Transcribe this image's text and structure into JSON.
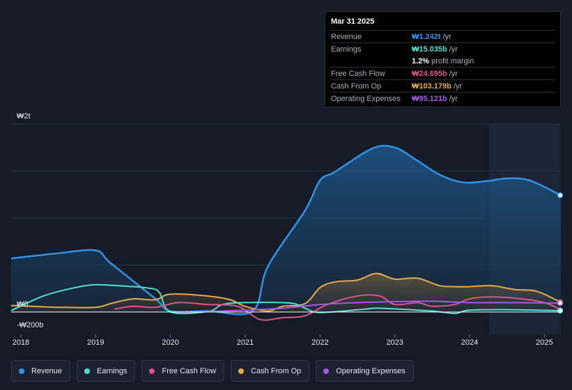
{
  "tooltip": {
    "date": "Mar 31 2025",
    "rows": [
      {
        "label": "Revenue",
        "value": "₩1.242t",
        "unit": "/yr",
        "color": "#2f94e8"
      },
      {
        "label": "Earnings",
        "value": "₩15.035b",
        "unit": "/yr",
        "color": "#4fe0cf"
      },
      {
        "label": "",
        "value": "1.2%",
        "unit": "profit margin",
        "color": "#ffffff"
      },
      {
        "label": "Free Cash Flow",
        "value": "₩24.695b",
        "unit": "/yr",
        "color": "#d9558c"
      },
      {
        "label": "Cash From Op",
        "value": "₩103.179b",
        "unit": "/yr",
        "color": "#e8a94e"
      },
      {
        "label": "Operating Expenses",
        "value": "₩95.121b",
        "unit": "/yr",
        "color": "#a35ae6"
      }
    ]
  },
  "chart_data": {
    "type": "area",
    "title": "",
    "xlabel": "",
    "ylabel": "",
    "y_tick_labels": {
      "top": "₩2t",
      "zero": "₩0",
      "bottom": "-₩200b"
    },
    "ylim": [
      -200,
      2000
    ],
    "xlim": [
      2017.87,
      2025.22
    ],
    "x_ticks": [
      2018,
      2019,
      2020,
      2021,
      2022,
      2023,
      2024,
      2025
    ],
    "x_tick_labels": [
      "2018",
      "2019",
      "2020",
      "2021",
      "2022",
      "2023",
      "2024",
      "2025"
    ],
    "highlight_from": 2024.26,
    "units": "KRW billions",
    "series": [
      {
        "name": "Revenue",
        "color": "#2f94e8",
        "fill": true,
        "points": [
          [
            2017.87,
            570
          ],
          [
            2018.5,
            625
          ],
          [
            2019.0,
            655
          ],
          [
            2019.2,
            520
          ],
          [
            2019.8,
            140
          ],
          [
            2020.0,
            10
          ],
          [
            2020.5,
            10
          ],
          [
            2021.1,
            10
          ],
          [
            2021.3,
            480
          ],
          [
            2021.8,
            1080
          ],
          [
            2022.0,
            1400
          ],
          [
            2022.2,
            1490
          ],
          [
            2022.7,
            1740
          ],
          [
            2023.0,
            1750
          ],
          [
            2023.3,
            1610
          ],
          [
            2023.6,
            1460
          ],
          [
            2023.9,
            1380
          ],
          [
            2024.2,
            1390
          ],
          [
            2024.5,
            1420
          ],
          [
            2024.8,
            1400
          ],
          [
            2025.22,
            1242
          ]
        ]
      },
      {
        "name": "Earnings",
        "color": "#4fe0cf",
        "fill": false,
        "points": [
          [
            2017.87,
            15
          ],
          [
            2018.3,
            170
          ],
          [
            2018.7,
            255
          ],
          [
            2019.0,
            290
          ],
          [
            2019.4,
            275
          ],
          [
            2019.7,
            255
          ],
          [
            2019.85,
            210
          ],
          [
            2020.0,
            0
          ],
          [
            2020.5,
            5
          ],
          [
            2020.7,
            80
          ],
          [
            2021.0,
            100
          ],
          [
            2021.6,
            95
          ],
          [
            2021.8,
            40
          ],
          [
            2022.0,
            -5
          ],
          [
            2022.6,
            30
          ],
          [
            2022.8,
            40
          ],
          [
            2023.5,
            10
          ],
          [
            2023.8,
            -15
          ],
          [
            2024.0,
            20
          ],
          [
            2024.5,
            25
          ],
          [
            2025.22,
            15
          ]
        ]
      },
      {
        "name": "Free Cash Flow",
        "color": "#d9558c",
        "fill": false,
        "points": [
          [
            2019.25,
            30
          ],
          [
            2019.5,
            60
          ],
          [
            2019.8,
            50
          ],
          [
            2020.1,
            100
          ],
          [
            2020.5,
            80
          ],
          [
            2020.9,
            60
          ],
          [
            2021.2,
            -80
          ],
          [
            2021.5,
            -60
          ],
          [
            2021.8,
            -40
          ],
          [
            2022.1,
            80
          ],
          [
            2022.5,
            170
          ],
          [
            2022.8,
            170
          ],
          [
            2023.0,
            80
          ],
          [
            2023.3,
            100
          ],
          [
            2023.5,
            60
          ],
          [
            2023.8,
            80
          ],
          [
            2024.0,
            140
          ],
          [
            2024.3,
            160
          ],
          [
            2024.7,
            140
          ],
          [
            2025.0,
            100
          ],
          [
            2025.22,
            25
          ]
        ]
      },
      {
        "name": "Cash From Op",
        "color": "#e8a94e",
        "fill": true,
        "points": [
          [
            2017.87,
            70
          ],
          [
            2018.5,
            50
          ],
          [
            2019.0,
            50
          ],
          [
            2019.2,
            90
          ],
          [
            2019.5,
            140
          ],
          [
            2019.8,
            130
          ],
          [
            2020.0,
            190
          ],
          [
            2020.5,
            170
          ],
          [
            2020.8,
            130
          ],
          [
            2021.0,
            60
          ],
          [
            2021.3,
            10
          ],
          [
            2021.5,
            60
          ],
          [
            2021.8,
            90
          ],
          [
            2022.0,
            260
          ],
          [
            2022.2,
            320
          ],
          [
            2022.5,
            340
          ],
          [
            2022.75,
            410
          ],
          [
            2023.0,
            350
          ],
          [
            2023.3,
            360
          ],
          [
            2023.6,
            280
          ],
          [
            2023.8,
            270
          ],
          [
            2024.0,
            270
          ],
          [
            2024.3,
            280
          ],
          [
            2024.6,
            240
          ],
          [
            2024.9,
            220
          ],
          [
            2025.22,
            103
          ]
        ]
      },
      {
        "name": "Operating Expenses",
        "color": "#a35ae6",
        "fill": false,
        "points": [
          [
            2020.2,
            5
          ],
          [
            2020.5,
            5
          ],
          [
            2021.0,
            20
          ],
          [
            2021.5,
            40
          ],
          [
            2022.0,
            80
          ],
          [
            2022.5,
            100
          ],
          [
            2023.0,
            110
          ],
          [
            2023.5,
            115
          ],
          [
            2024.0,
            100
          ],
          [
            2024.5,
            100
          ],
          [
            2025.22,
            95
          ]
        ]
      }
    ]
  },
  "legend": [
    {
      "label": "Revenue",
      "color": "#2f94e8"
    },
    {
      "label": "Earnings",
      "color": "#4fe0cf"
    },
    {
      "label": "Free Cash Flow",
      "color": "#d9558c"
    },
    {
      "label": "Cash From Op",
      "color": "#e8a94e"
    },
    {
      "label": "Operating Expenses",
      "color": "#a35ae6"
    }
  ]
}
